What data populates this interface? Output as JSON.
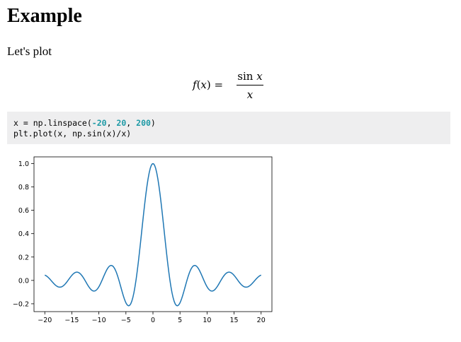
{
  "heading": "Example",
  "intro": "Let's plot",
  "formula": {
    "lhs_name": "f",
    "lhs_var": "x",
    "equals": "=",
    "num_func": "sin",
    "num_var": "x",
    "den_var": "x"
  },
  "code": {
    "line1": {
      "prefix": "x = np.linspace(",
      "n1": "-20",
      "sep1": ", ",
      "n2": "20",
      "sep2": ", ",
      "n3": "200",
      "suffix": ")"
    },
    "line2": "plt.plot(x, np.sin(x)/x)",
    "number_color": "#1e9aa6",
    "background": "#eeeeef"
  },
  "chart_data": {
    "type": "line",
    "title": "",
    "xlabel": "",
    "ylabel": "",
    "function": "sin(x)/x",
    "x_range": [
      -20,
      20
    ],
    "n_points": 200,
    "xlim": [
      -22,
      22
    ],
    "ylim": [
      -0.267,
      1.057
    ],
    "xticks": [
      -20,
      -15,
      -10,
      -5,
      0,
      5,
      10,
      15,
      20
    ],
    "xtick_labels": [
      "−20",
      "−15",
      "−10",
      "−5",
      "0",
      "5",
      "10",
      "15",
      "20"
    ],
    "yticks": [
      -0.2,
      0.0,
      0.2,
      0.4,
      0.6,
      0.8,
      1.0
    ],
    "ytick_labels": [
      "−0.2",
      "0.0",
      "0.2",
      "0.4",
      "0.6",
      "0.8",
      "1.0"
    ],
    "grid": false,
    "line_color": "#1f77b4"
  }
}
